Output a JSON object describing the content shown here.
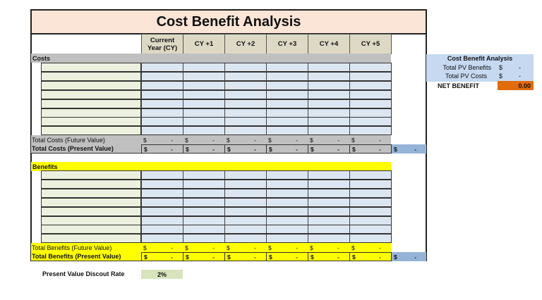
{
  "title": "Cost Benefit Analysis",
  "columns": [
    "Current\nYear (CY)",
    "CY +1",
    "CY +2",
    "CY +3",
    "CY +4",
    "CY +5"
  ],
  "colors": {
    "title_bg": "#fbe5d6",
    "header_bg": "#ddd9c4",
    "costs_band": "#c0c0c0",
    "benefits_band": "#ffff00",
    "label_input": "#ebf1de",
    "value_input": "#dce6f1",
    "grand_total": "#95b3d7",
    "net_benefit": "#e26b0a",
    "rate_bg": "#d8e4bc"
  },
  "costs": {
    "section_label": "Costs",
    "row_count": 8,
    "total_fv_label": "Total Costs (Future Value)",
    "total_pv_label": "Total Costs (Present Value)",
    "fv_values": [
      "-",
      "-",
      "-",
      "-",
      "-",
      "-"
    ],
    "pv_values": [
      "-",
      "-",
      "-",
      "-",
      "-",
      "-"
    ],
    "grand_total": "-"
  },
  "benefits": {
    "section_label": "Benefits",
    "row_count": 8,
    "total_fv_label": "Total Benefits (Future Value)",
    "total_pv_label": "Total Benefits (Present Value)",
    "fv_values": [
      "-",
      "-",
      "-",
      "-",
      "-",
      "-"
    ],
    "pv_values": [
      "-",
      "-",
      "-",
      "-",
      "-",
      "-"
    ],
    "grand_total": "-"
  },
  "currency_symbol": "$",
  "summary": {
    "title": "Cost Benefit Analysis",
    "pv_benefits_label": "Total PV Benefits",
    "pv_benefits_value": "-",
    "pv_costs_label": "Total PV Costs",
    "pv_costs_value": "-",
    "net_label": "NET BENEFIT",
    "net_value": "0.00"
  },
  "discount": {
    "label": "Present Value Discout Rate",
    "value": "2%"
  }
}
